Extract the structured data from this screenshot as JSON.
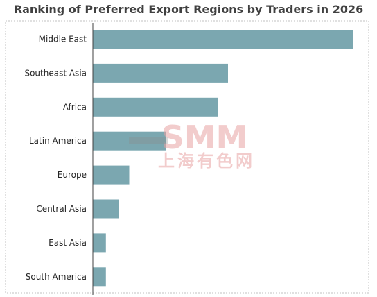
{
  "chart_data": {
    "type": "bar",
    "orientation": "horizontal",
    "title": "Ranking of Preferred Export Regions by Traders in 2026",
    "categories": [
      "Middle East",
      "Southeast Asia",
      "Africa",
      "Latin America",
      "Europe",
      "Central Asia",
      "East Asia",
      "South America"
    ],
    "values": [
      100,
      52,
      48,
      28,
      14,
      10,
      5,
      5
    ],
    "xlim": [
      0,
      105
    ],
    "xlabel": "",
    "ylabel": "",
    "grid": false,
    "legend": "none",
    "bar_color": "#7BA7B0"
  },
  "watermark": {
    "line1": "SMM",
    "line2": "上海有色网",
    "color": "#E8A3A3"
  }
}
